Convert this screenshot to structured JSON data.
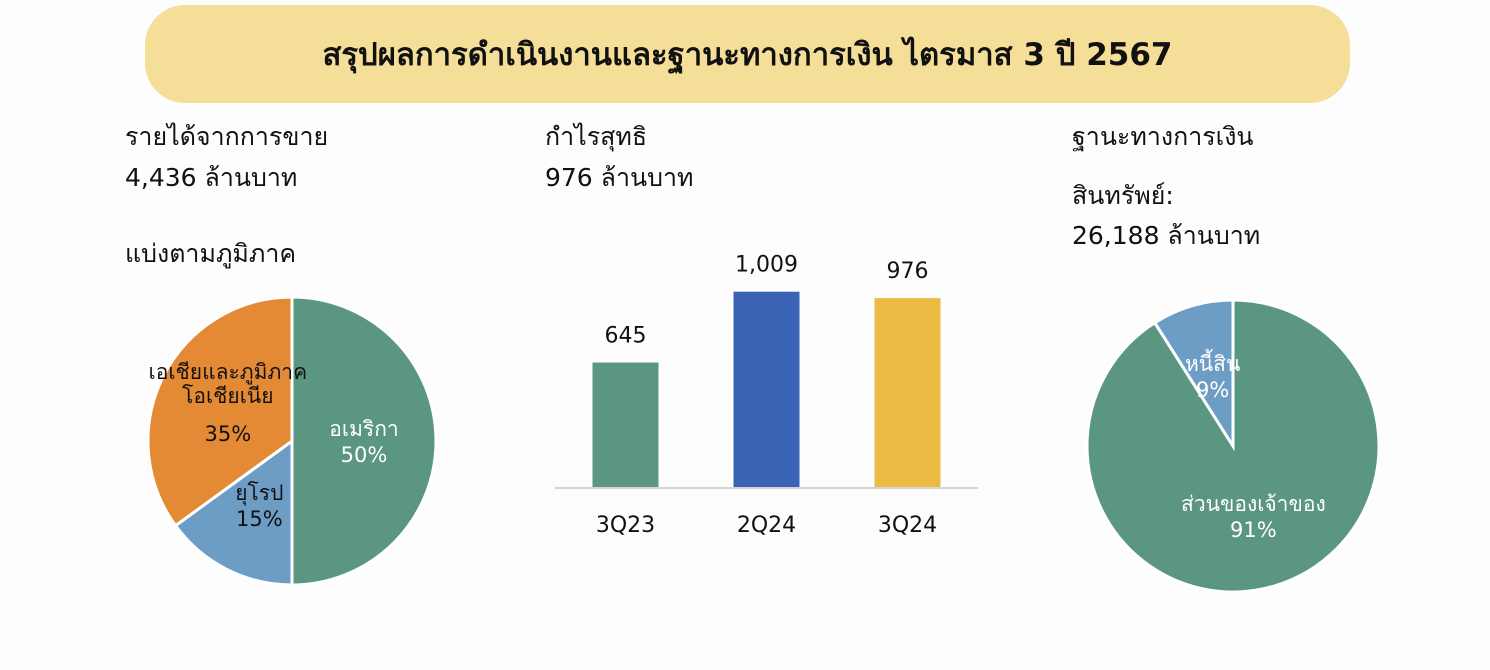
{
  "header": {
    "title": "สรุปผลการดำเนินงานและฐานะทางการเงิน ไตรมาส 3 ปี 2567"
  },
  "chart_data": [
    {
      "type": "pie",
      "title": "รายได้จากการขาย",
      "subtitle": "4,436 ล้านบาท",
      "annotation": "แบ่งตามภูมิภาค",
      "categories": [
        "อเมริกา",
        "ยุโรป",
        "เอเชียและภูมิภาค\nโอเชียเนีย"
      ],
      "values": [
        50,
        15,
        35
      ],
      "value_labels": [
        "50%",
        "15%",
        "35%"
      ],
      "colors": [
        "#5b9780",
        "#6d9dc5",
        "#e48a35"
      ],
      "label_colors": [
        "#ffffff",
        "#111111",
        "#111111"
      ]
    },
    {
      "type": "bar",
      "title": "กำไรสุทธิ",
      "subtitle": "976 ล้านบาท",
      "categories": [
        "3Q23",
        "2Q24",
        "3Q24"
      ],
      "values": [
        645,
        1009,
        976
      ],
      "value_labels": [
        "645",
        "1,009",
        "976"
      ],
      "colors": [
        "#5b9780",
        "#3a62b5",
        "#ecbb44"
      ],
      "ylim": [
        0,
        1100
      ]
    },
    {
      "type": "pie",
      "title": "ฐานะทางการเงิน",
      "subtitle": "สินทรัพย์:\n26,188 ล้านบาท",
      "categories": [
        "ส่วนของเจ้าของ",
        "หนี้สิน"
      ],
      "values": [
        91,
        9
      ],
      "value_labels": [
        "91%",
        "9%"
      ],
      "colors": [
        "#5b9780",
        "#6d9dc5"
      ],
      "label_colors": [
        "#ffffff",
        "#ffffff"
      ]
    }
  ]
}
